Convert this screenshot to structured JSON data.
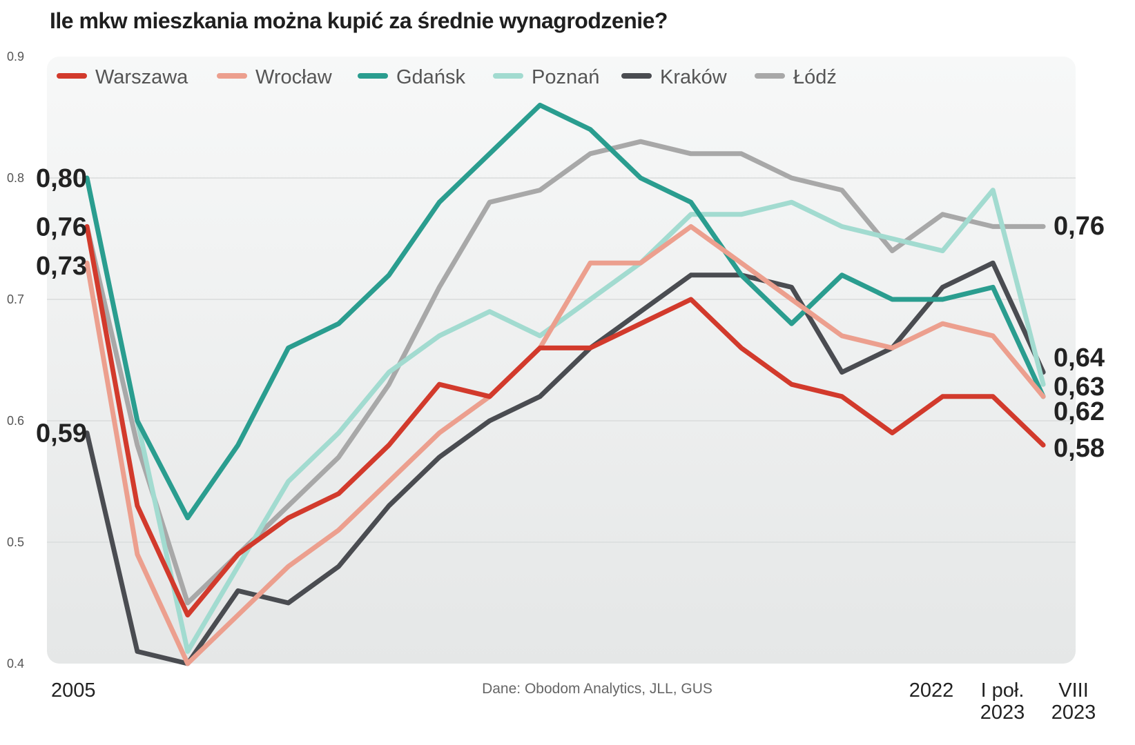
{
  "chart_data": {
    "type": "line",
    "title": "Ile mkw mieszkania można kupić za średnie wynagrodzenie?",
    "source": "Dane: Obodom Analytics, JLL, GUS",
    "ylim": [
      0.4,
      0.9
    ],
    "yticks": [
      "0.9",
      "0.8",
      "0.7",
      "0.6",
      "0.5",
      "0.4"
    ],
    "grid": true,
    "legend_position": "top",
    "x_count": 20,
    "x_labels": [
      {
        "index": 0,
        "lines": [
          "2005"
        ]
      },
      {
        "index": 17,
        "lines": [
          "2022"
        ]
      },
      {
        "index": 18,
        "lines": [
          "I poł.",
          "2023"
        ]
      },
      {
        "index": 19,
        "lines": [
          "VIII",
          "2023"
        ]
      }
    ],
    "series": [
      {
        "name": "Warszawa",
        "color": "#d23a2c",
        "values": [
          0.76,
          0.53,
          0.44,
          0.49,
          0.52,
          0.54,
          0.58,
          0.63,
          0.62,
          0.66,
          0.66,
          0.68,
          0.7,
          0.66,
          0.63,
          0.62,
          0.59,
          0.62,
          0.62,
          0.58
        ]
      },
      {
        "name": "Wrocław",
        "color": "#ec9f8e",
        "values": [
          0.73,
          0.49,
          0.4,
          0.44,
          0.48,
          0.51,
          0.55,
          0.59,
          0.62,
          0.66,
          0.73,
          0.73,
          0.76,
          0.73,
          0.7,
          0.67,
          0.66,
          0.68,
          0.67,
          0.62
        ]
      },
      {
        "name": "Gdańsk",
        "color": "#2a9d8f",
        "values": [
          0.8,
          0.6,
          0.52,
          0.58,
          0.66,
          0.68,
          0.72,
          0.78,
          0.82,
          0.86,
          0.84,
          0.8,
          0.78,
          0.72,
          0.68,
          0.72,
          0.7,
          0.7,
          0.71,
          0.62
        ]
      },
      {
        "name": "Poznań",
        "color": "#a2dbd0",
        "values": [
          0.8,
          0.6,
          0.41,
          0.48,
          0.55,
          0.59,
          0.64,
          0.67,
          0.69,
          0.67,
          0.7,
          0.73,
          0.77,
          0.77,
          0.78,
          0.76,
          0.75,
          0.74,
          0.79,
          0.63
        ]
      },
      {
        "name": "Kraków",
        "color": "#4a4c51",
        "values": [
          0.59,
          0.41,
          0.4,
          0.46,
          0.45,
          0.48,
          0.53,
          0.57,
          0.6,
          0.62,
          0.66,
          0.69,
          0.72,
          0.72,
          0.71,
          0.64,
          0.66,
          0.71,
          0.73,
          0.64
        ]
      },
      {
        "name": "Łódź",
        "color": "#a8a8a8",
        "values": [
          0.76,
          0.58,
          0.45,
          0.49,
          0.53,
          0.57,
          0.63,
          0.71,
          0.78,
          0.79,
          0.82,
          0.83,
          0.82,
          0.82,
          0.8,
          0.79,
          0.74,
          0.77,
          0.76,
          0.76
        ]
      }
    ],
    "start_labels": [
      {
        "text": "0,80",
        "value": 0.8
      },
      {
        "text": "0,76",
        "value": 0.76
      },
      {
        "text": "0,73",
        "value": 0.73
      },
      {
        "text": "0,59",
        "value": 0.59
      }
    ],
    "end_labels": [
      {
        "text": "0,76",
        "value": 0.76
      },
      {
        "text": "0,64",
        "value": 0.64
      },
      {
        "text": "0,63",
        "value": 0.63
      },
      {
        "text": "0,62",
        "value": 0.62
      },
      {
        "text": "0,58",
        "value": 0.58
      }
    ]
  }
}
